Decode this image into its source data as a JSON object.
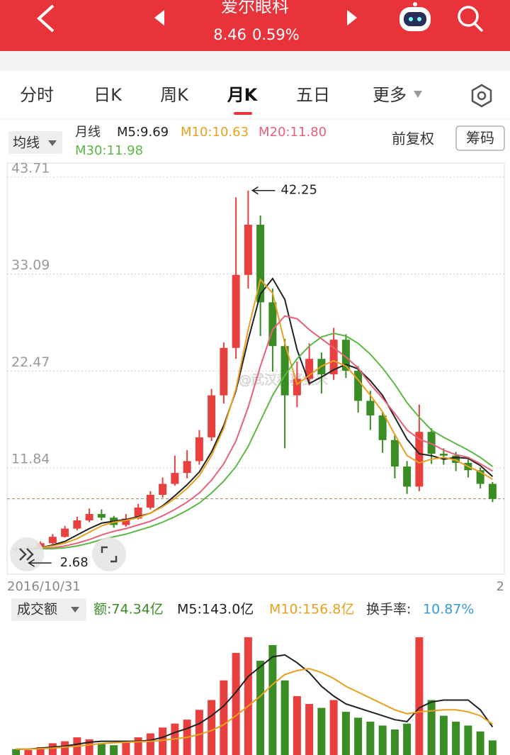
{
  "header": {
    "title": "爱尔眼科",
    "price": 8.46,
    "change": "0.59%"
  },
  "tabs": [
    "分时",
    "日K",
    "周K",
    "月K",
    "五日",
    "更多"
  ],
  "indicators": {
    "ma_button": "均线",
    "period": "月线",
    "adjust": "前复权",
    "chips": "筹码"
  },
  "watermark": "@武汉私募女米",
  "chart_data": [
    {
      "type": "candlestick",
      "x_labels": [
        "2016/10/31",
        "2"
      ],
      "ylim": [
        0.2,
        45.1
      ],
      "yticks": [
        11.84,
        22.47,
        33.09,
        43.71
      ],
      "grid": true,
      "max_label": 42.25,
      "min_label": 2.68,
      "open": [
        3.0,
        2.9,
        3.1,
        3.6,
        4.3,
        5.2,
        6.1,
        6.8,
        6.4,
        5.6,
        6.3,
        7.5,
        8.9,
        10.1,
        11.3,
        12.6,
        15.2,
        19.8,
        25.0,
        33.0,
        38.5,
        30.0,
        25.2,
        19.8,
        21.6,
        23.8,
        22.1,
        25.9,
        22.5,
        19.2,
        17.6,
        14.9,
        12.0,
        9.8,
        15.8,
        13.4,
        13.2,
        12.4,
        11.6,
        10.1
      ],
      "close": [
        2.9,
        3.1,
        3.6,
        4.3,
        5.2,
        6.1,
        6.8,
        6.4,
        5.6,
        6.3,
        7.5,
        8.9,
        10.1,
        11.3,
        12.6,
        15.2,
        19.8,
        25.0,
        33.0,
        38.5,
        30.0,
        25.2,
        19.8,
        21.6,
        23.8,
        22.1,
        25.9,
        22.5,
        19.2,
        17.6,
        14.9,
        12.0,
        9.8,
        15.8,
        13.4,
        13.2,
        12.4,
        11.6,
        10.1,
        8.46
      ],
      "high": [
        3.2,
        3.3,
        3.8,
        4.6,
        5.5,
        6.5,
        7.4,
        7.3,
        6.6,
        6.8,
        7.9,
        9.3,
        10.8,
        13.2,
        13.8,
        16.0,
        20.5,
        25.6,
        41.5,
        42.25,
        39.5,
        31.5,
        26.0,
        23.5,
        25.5,
        24.5,
        27.2,
        26.5,
        23.0,
        20.3,
        18.0,
        15.5,
        12.6,
        18.8,
        16.2,
        14.0,
        13.6,
        12.8,
        11.9,
        10.3
      ],
      "low": [
        2.68,
        2.8,
        3.0,
        3.5,
        4.2,
        5.0,
        5.9,
        6.1,
        5.3,
        5.4,
        6.2,
        7.3,
        8.6,
        9.9,
        10.7,
        12.2,
        14.8,
        18.9,
        23.8,
        31.5,
        26.3,
        22.4,
        14.0,
        18.5,
        20.9,
        20.0,
        21.5,
        21.7,
        17.9,
        16.0,
        13.5,
        10.7,
        9.0,
        9.3,
        12.3,
        12.2,
        11.5,
        10.8,
        9.6,
        8.1
      ],
      "series": [
        {
          "name": "M5:9.69",
          "color": "#222222",
          "values": [
            3.0,
            3.0,
            3.1,
            3.4,
            3.8,
            4.5,
            5.2,
            5.8,
            6.0,
            6.2,
            6.5,
            6.9,
            7.7,
            8.8,
            10.0,
            11.4,
            13.6,
            16.5,
            20.3,
            25.9,
            30.9,
            32.6,
            30.3,
            24.8,
            21.1,
            21.8,
            22.6,
            23.2,
            22.7,
            21.4,
            19.8,
            17.4,
            15.0,
            13.4,
            13.2,
            12.8,
            13.0,
            12.9,
            12.1,
            10.9
          ]
        },
        {
          "name": "M10:10.63",
          "color": "#e8a020",
          "values": [
            3.0,
            3.0,
            3.1,
            3.3,
            3.6,
            4.1,
            4.8,
            5.5,
            5.9,
            6.1,
            6.4,
            6.9,
            7.6,
            8.5,
            9.6,
            11.0,
            13.2,
            16.2,
            20.5,
            27.0,
            32.5,
            31.0,
            25.5,
            21.0,
            22.0,
            23.0,
            23.6,
            23.0,
            21.5,
            19.8,
            18.0,
            15.5,
            13.2,
            12.4,
            12.8,
            13.0,
            12.7,
            12.0,
            11.4,
            10.6
          ]
        },
        {
          "name": "M20:11.80",
          "color": "#e8607a",
          "values": [
            3.0,
            3.0,
            3.0,
            3.1,
            3.3,
            3.6,
            4.0,
            4.5,
            4.9,
            5.2,
            5.6,
            6.0,
            6.6,
            7.3,
            8.1,
            9.1,
            10.5,
            12.3,
            14.8,
            18.5,
            23.0,
            27.0,
            28.5,
            28.2,
            27.0,
            26.0,
            25.0,
            24.0,
            22.8,
            21.0,
            19.5,
            17.8,
            16.0,
            15.0,
            14.5,
            13.8,
            13.3,
            13.0,
            12.3,
            11.5
          ]
        },
        {
          "name": "M30:11.98",
          "color": "#5cb845",
          "values": [
            3.0,
            3.0,
            3.0,
            3.0,
            3.1,
            3.3,
            3.6,
            4.0,
            4.3,
            4.6,
            5.0,
            5.4,
            5.9,
            6.5,
            7.2,
            8.0,
            9.1,
            10.4,
            12.0,
            14.2,
            17.0,
            19.8,
            22.0,
            23.8,
            25.2,
            26.2,
            26.6,
            26.3,
            25.5,
            24.3,
            22.8,
            21.0,
            19.0,
            17.4,
            16.0,
            15.2,
            14.5,
            13.8,
            13.0,
            12.0
          ]
        }
      ]
    },
    {
      "type": "volume",
      "button": "成交额",
      "amount_label": "额:74.34亿",
      "turnover_label": "换手率:",
      "turnover": "10.87%",
      "ylim": [
        0,
        650
      ],
      "values": [
        30,
        25,
        40,
        60,
        70,
        90,
        80,
        60,
        50,
        70,
        90,
        110,
        140,
        160,
        180,
        230,
        280,
        380,
        520,
        600,
        480,
        560,
        380,
        300,
        260,
        240,
        280,
        220,
        190,
        170,
        150,
        130,
        160,
        600,
        280,
        200,
        170,
        150,
        120,
        74.34
      ],
      "series": [
        {
          "name": "M5:143.0亿",
          "color": "#222222",
          "values": [
            30,
            30,
            35,
            40,
            45,
            55,
            65,
            70,
            70,
            70,
            70,
            75,
            90,
            115,
            135,
            160,
            200,
            250,
            320,
            400,
            450,
            500,
            510,
            470,
            420,
            350,
            300,
            260,
            240,
            220,
            200,
            180,
            170,
            240,
            270,
            280,
            280,
            280,
            230,
            143.0
          ]
        },
        {
          "name": "M10:156.8亿",
          "color": "#e8a020",
          "values": [
            30,
            30,
            32,
            35,
            40,
            45,
            52,
            58,
            62,
            65,
            67,
            70,
            75,
            82,
            90,
            105,
            125,
            155,
            200,
            250,
            300,
            360,
            410,
            430,
            440,
            420,
            390,
            350,
            320,
            290,
            260,
            230,
            210,
            220,
            225,
            230,
            230,
            220,
            200,
            156.8
          ]
        }
      ]
    }
  ]
}
